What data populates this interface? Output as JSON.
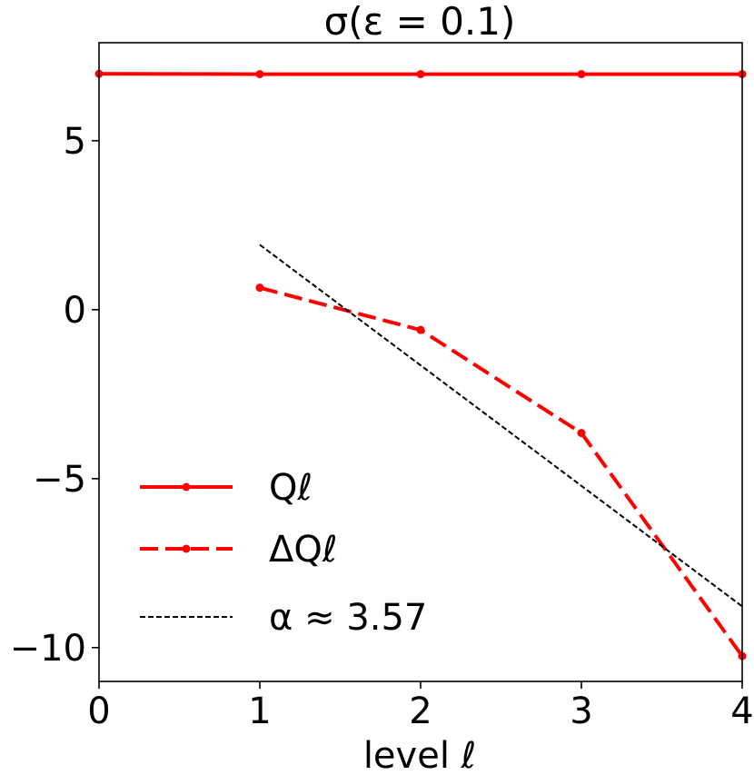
{
  "chart_data": {
    "type": "line",
    "title": "σ(ε = 0.1)",
    "xlabel": "level ℓ",
    "ylabel": "",
    "xlim": [
      0,
      4
    ],
    "ylim": [
      -11,
      7.9
    ],
    "xticks": [
      0,
      1,
      2,
      3,
      4
    ],
    "xtick_labels": [
      "0",
      "1",
      "2",
      "3",
      "4"
    ],
    "yticks": [
      5,
      0,
      -5,
      -10
    ],
    "ytick_labels": [
      "5",
      "0",
      "−5",
      "−10"
    ],
    "grid": false,
    "legend_position": "lower-left",
    "series": [
      {
        "name": "Qℓ",
        "style": "solid",
        "marker": "circle",
        "color": "#ff0000",
        "x": [
          0,
          1,
          2,
          3,
          4
        ],
        "y": [
          6.98,
          6.97,
          6.97,
          6.97,
          6.97
        ]
      },
      {
        "name": "ΔQℓ",
        "style": "dashed",
        "marker": "circle",
        "color": "#ff0000",
        "x": [
          1,
          2,
          3,
          4
        ],
        "y": [
          0.65,
          -0.6,
          -3.65,
          -10.25
        ]
      },
      {
        "name": "α ≈ 3.57",
        "style": "dotted",
        "marker": "none",
        "color": "#000000",
        "x": [
          1,
          4
        ],
        "y": [
          1.92,
          -8.78
        ]
      }
    ]
  }
}
